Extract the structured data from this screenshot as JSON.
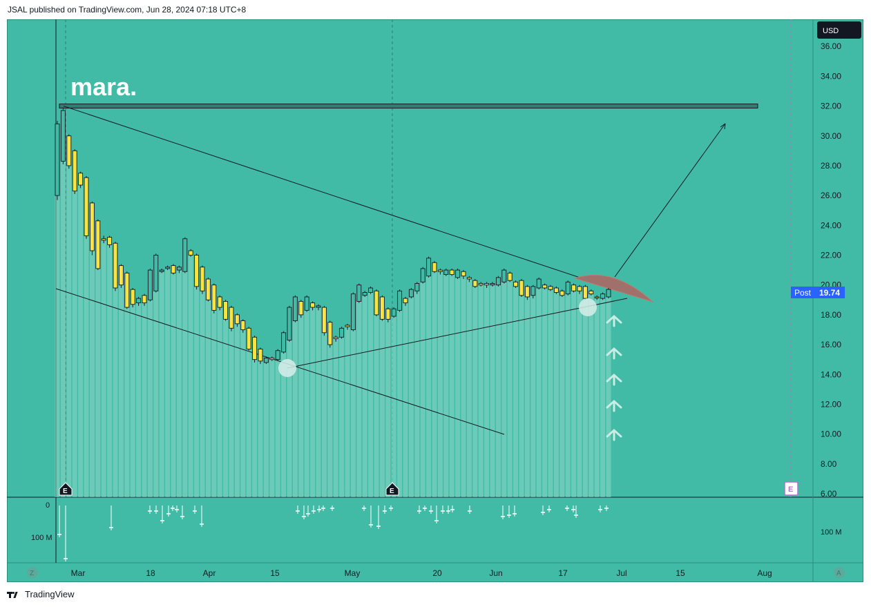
{
  "publisher_line": "JSAL published on TradingView.com, Jun 28, 2024 07:18 UTC+8",
  "footer_brand": "TradingView",
  "colors": {
    "background": "#41bba5",
    "volume_fill": "#8fd8c8",
    "candle_up_fill": "#41bba5",
    "candle_down_fill": "#f7e342",
    "resistance_band": "#2f7f70",
    "arc_fill": "#a0706b",
    "circle_marker": "#d8efea"
  },
  "chart_data": {
    "type": "candlestick",
    "symbol_label": "mara.",
    "currency": "USD",
    "post_label": "Post",
    "last_price": "19.74",
    "ylim": [
      6,
      38
    ],
    "y_ticks": [
      "36.00",
      "34.00",
      "32.00",
      "30.00",
      "28.00",
      "26.00",
      "24.00",
      "22.00",
      "20.00",
      "18.00",
      "16.00",
      "14.00",
      "12.00",
      "10.00",
      "8.00",
      "6.00"
    ],
    "x_ticks": [
      "Mar",
      "18",
      "Apr",
      "15",
      "May",
      "20",
      "Jun",
      "17",
      "Jul",
      "15",
      "Aug"
    ],
    "volume_ticks": [
      "0",
      "100 M"
    ],
    "volume_axis_label": "100 M",
    "resistance_level": 32.0,
    "candles": [
      [
        26.0,
        30.8,
        25.7,
        31.0,
        "up"
      ],
      [
        28.3,
        31.7,
        28.1,
        31.9,
        "up"
      ],
      [
        30.0,
        28.0,
        27.8,
        30.1,
        "down"
      ],
      [
        29.0,
        26.3,
        26.1,
        29.1,
        "down"
      ],
      [
        27.5,
        26.7,
        26.5,
        27.6,
        "down"
      ],
      [
        27.2,
        23.3,
        23.1,
        27.3,
        "down"
      ],
      [
        25.5,
        22.3,
        22.0,
        25.6,
        "down"
      ],
      [
        24.3,
        21.1,
        21.0,
        24.4,
        "down"
      ],
      [
        23.1,
        23.0,
        22.8,
        23.3,
        "down"
      ],
      [
        23.2,
        22.7,
        22.5,
        23.3,
        "down"
      ],
      [
        22.8,
        19.8,
        19.6,
        22.9,
        "down"
      ],
      [
        21.3,
        20.0,
        19.8,
        21.4,
        "down"
      ],
      [
        20.8,
        18.5,
        18.4,
        20.9,
        "down"
      ],
      [
        19.7,
        18.7,
        18.5,
        19.8,
        "down"
      ],
      [
        18.8,
        19.1,
        18.6,
        19.2,
        "up"
      ],
      [
        19.3,
        18.8,
        18.6,
        19.4,
        "down"
      ],
      [
        19.0,
        21.0,
        18.9,
        21.1,
        "up"
      ],
      [
        19.6,
        22.0,
        19.5,
        22.1,
        "up"
      ],
      [
        20.9,
        21.0,
        20.8,
        21.1,
        "up"
      ],
      [
        21.1,
        21.2,
        21.0,
        21.3,
        "up"
      ],
      [
        21.3,
        20.8,
        20.7,
        21.4,
        "down"
      ],
      [
        21.0,
        21.2,
        20.8,
        21.3,
        "up"
      ],
      [
        20.9,
        23.1,
        20.8,
        23.2,
        "up"
      ],
      [
        22.3,
        22.0,
        21.9,
        22.4,
        "down"
      ],
      [
        22.0,
        19.9,
        19.7,
        22.1,
        "down"
      ],
      [
        21.2,
        19.6,
        19.4,
        21.3,
        "down"
      ],
      [
        20.4,
        19.0,
        18.9,
        20.5,
        "down"
      ],
      [
        20.0,
        18.3,
        18.1,
        20.1,
        "down"
      ],
      [
        19.2,
        18.5,
        18.3,
        19.3,
        "down"
      ],
      [
        18.9,
        17.7,
        17.6,
        19.0,
        "down"
      ],
      [
        18.5,
        17.1,
        16.9,
        18.6,
        "down"
      ],
      [
        18.0,
        17.4,
        17.2,
        18.1,
        "down"
      ],
      [
        17.6,
        17.0,
        16.8,
        17.7,
        "down"
      ],
      [
        17.1,
        15.7,
        15.6,
        17.2,
        "down"
      ],
      [
        16.5,
        15.0,
        14.8,
        16.6,
        "down"
      ],
      [
        15.7,
        14.9,
        14.7,
        15.8,
        "down"
      ],
      [
        14.8,
        15.1,
        14.7,
        15.2,
        "up"
      ],
      [
        15.1,
        15.0,
        14.9,
        15.2,
        "down"
      ],
      [
        15.0,
        15.6,
        14.9,
        15.7,
        "up"
      ],
      [
        15.5,
        16.8,
        15.4,
        16.9,
        "up"
      ],
      [
        16.3,
        18.5,
        16.2,
        18.6,
        "up"
      ],
      [
        17.6,
        19.2,
        17.5,
        19.3,
        "up"
      ],
      [
        18.9,
        18.0,
        17.8,
        19.0,
        "down"
      ],
      [
        18.3,
        19.2,
        18.2,
        19.3,
        "up"
      ],
      [
        18.8,
        18.5,
        18.3,
        18.9,
        "down"
      ],
      [
        18.5,
        18.6,
        18.3,
        18.7,
        "up"
      ],
      [
        18.5,
        16.8,
        16.6,
        18.6,
        "down"
      ],
      [
        17.5,
        16.0,
        15.8,
        17.6,
        "down"
      ],
      [
        16.5,
        16.4,
        16.2,
        16.6,
        "down"
      ],
      [
        16.5,
        17.1,
        16.4,
        17.2,
        "up"
      ],
      [
        17.2,
        17.3,
        17.0,
        17.4,
        "down"
      ],
      [
        17.0,
        19.4,
        16.9,
        19.5,
        "up"
      ],
      [
        18.9,
        20.0,
        18.8,
        20.1,
        "up"
      ],
      [
        19.3,
        19.5,
        19.2,
        19.6,
        "up"
      ],
      [
        19.5,
        19.8,
        19.4,
        19.9,
        "up"
      ],
      [
        19.6,
        18.0,
        17.9,
        19.7,
        "down"
      ],
      [
        19.2,
        17.7,
        17.6,
        19.3,
        "down"
      ],
      [
        18.4,
        17.7,
        17.5,
        18.5,
        "down"
      ],
      [
        17.9,
        18.4,
        17.8,
        18.5,
        "up"
      ],
      [
        18.3,
        19.6,
        18.2,
        19.7,
        "up"
      ],
      [
        19.1,
        18.8,
        18.6,
        19.2,
        "down"
      ],
      [
        19.2,
        19.7,
        19.1,
        19.8,
        "up"
      ],
      [
        19.6,
        20.1,
        19.4,
        20.2,
        "up"
      ],
      [
        20.2,
        21.1,
        20.1,
        21.2,
        "up"
      ],
      [
        20.6,
        21.8,
        20.5,
        21.9,
        "up"
      ],
      [
        21.5,
        20.9,
        20.8,
        21.6,
        "down"
      ],
      [
        21.0,
        20.9,
        20.7,
        21.1,
        "down"
      ],
      [
        20.7,
        21.0,
        20.6,
        21.1,
        "up"
      ],
      [
        21.0,
        20.7,
        20.6,
        21.1,
        "down"
      ],
      [
        20.5,
        21.0,
        20.4,
        21.1,
        "up"
      ],
      [
        20.9,
        20.6,
        20.4,
        21.0,
        "down"
      ],
      [
        20.5,
        20.4,
        20.2,
        20.6,
        "down"
      ],
      [
        20.3,
        19.9,
        19.8,
        20.4,
        "down"
      ],
      [
        20.1,
        20.0,
        19.9,
        20.2,
        "down"
      ],
      [
        20.1,
        20.0,
        19.8,
        20.2,
        "down"
      ],
      [
        20.0,
        20.1,
        19.9,
        20.2,
        "up"
      ],
      [
        20.0,
        20.5,
        19.9,
        20.6,
        "up"
      ],
      [
        20.2,
        21.0,
        20.1,
        21.1,
        "up"
      ],
      [
        20.8,
        20.3,
        20.2,
        20.9,
        "down"
      ],
      [
        20.2,
        19.9,
        19.8,
        20.3,
        "down"
      ],
      [
        20.3,
        19.3,
        19.2,
        20.4,
        "down"
      ],
      [
        19.9,
        19.2,
        19.0,
        20.0,
        "down"
      ],
      [
        19.3,
        19.9,
        19.1,
        20.0,
        "up"
      ],
      [
        19.8,
        20.4,
        19.7,
        20.5,
        "up"
      ],
      [
        20.0,
        19.8,
        19.7,
        20.1,
        "down"
      ],
      [
        19.9,
        19.7,
        19.6,
        20.0,
        "down"
      ],
      [
        19.8,
        19.5,
        19.4,
        19.9,
        "down"
      ],
      [
        19.6,
        19.3,
        19.2,
        19.7,
        "down"
      ],
      [
        19.4,
        20.2,
        19.3,
        20.3,
        "up"
      ],
      [
        20.0,
        19.6,
        19.5,
        20.1,
        "down"
      ],
      [
        19.9,
        19.6,
        19.4,
        20.0,
        "down"
      ],
      [
        19.9,
        19.1,
        19.0,
        20.0,
        "down"
      ],
      [
        19.6,
        19.4,
        19.3,
        19.7,
        "down"
      ],
      [
        19.2,
        19.2,
        19.0,
        19.3,
        "down"
      ],
      [
        19.1,
        19.4,
        19.0,
        19.5,
        "up"
      ],
      [
        19.2,
        19.7,
        19.1,
        19.8,
        "up"
      ]
    ]
  },
  "scale_buttons": {
    "left": "Z",
    "right": "A"
  },
  "earnings_markers": [
    "E",
    "E",
    "E"
  ]
}
